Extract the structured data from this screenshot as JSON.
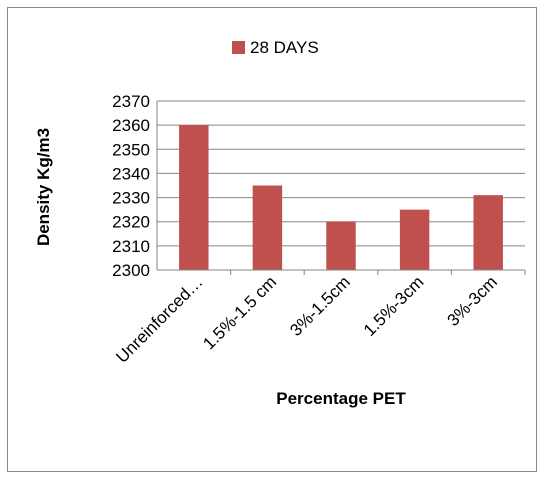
{
  "chart_data": {
    "type": "bar",
    "categories": [
      "Unreinforced…",
      "1.5%-1.5 cm",
      "3%-1.5cm",
      "1.5%-3cm",
      "3%-3cm"
    ],
    "series": [
      {
        "name": "28 DAYS",
        "values": [
          2360,
          2335,
          2320,
          2325,
          2331
        ]
      }
    ],
    "xlabel": "Percentage PET",
    "ylabel": "Density Kg/m3",
    "ylim": [
      2300,
      2370
    ],
    "yticks": [
      2300,
      2310,
      2320,
      2330,
      2340,
      2350,
      2360,
      2370
    ],
    "grid": true,
    "legend": "top-center",
    "colors": {
      "bar": "#c0504d",
      "grid": "#868686",
      "axis": "#868686",
      "text": "#000000"
    }
  }
}
